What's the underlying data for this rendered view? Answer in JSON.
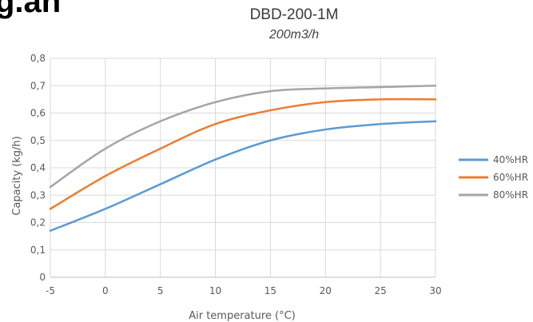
{
  "heading_fragment": "g.an",
  "chart_data": {
    "type": "line",
    "title": "DBD-200-1M",
    "subtitle": "200m3/h",
    "xlabel": "Air temperature (°C)",
    "ylabel": "Capacity (kg/h)",
    "x": [
      -5,
      0,
      5,
      10,
      15,
      20,
      25,
      30
    ],
    "xlim": [
      -5,
      30
    ],
    "ylim": [
      0,
      0.8
    ],
    "x_ticks": [
      "-5",
      "0",
      "5",
      "10",
      "15",
      "20",
      "25",
      "30"
    ],
    "y_ticks": [
      "0",
      "0,1",
      "0,2",
      "0,3",
      "0,4",
      "0,5",
      "0,6",
      "0,7",
      "0,8"
    ],
    "grid": true,
    "legend_position": "right",
    "series": [
      {
        "name": "40%HR",
        "color": "#5b9bd5",
        "values": [
          0.17,
          0.25,
          0.34,
          0.43,
          0.5,
          0.54,
          0.56,
          0.57
        ]
      },
      {
        "name": "60%HR",
        "color": "#ed7d31",
        "values": [
          0.25,
          0.37,
          0.47,
          0.56,
          0.61,
          0.64,
          0.65,
          0.65
        ]
      },
      {
        "name": "80%HR",
        "color": "#a5a5a5",
        "values": [
          0.33,
          0.47,
          0.57,
          0.64,
          0.68,
          0.69,
          0.695,
          0.7
        ]
      }
    ]
  }
}
